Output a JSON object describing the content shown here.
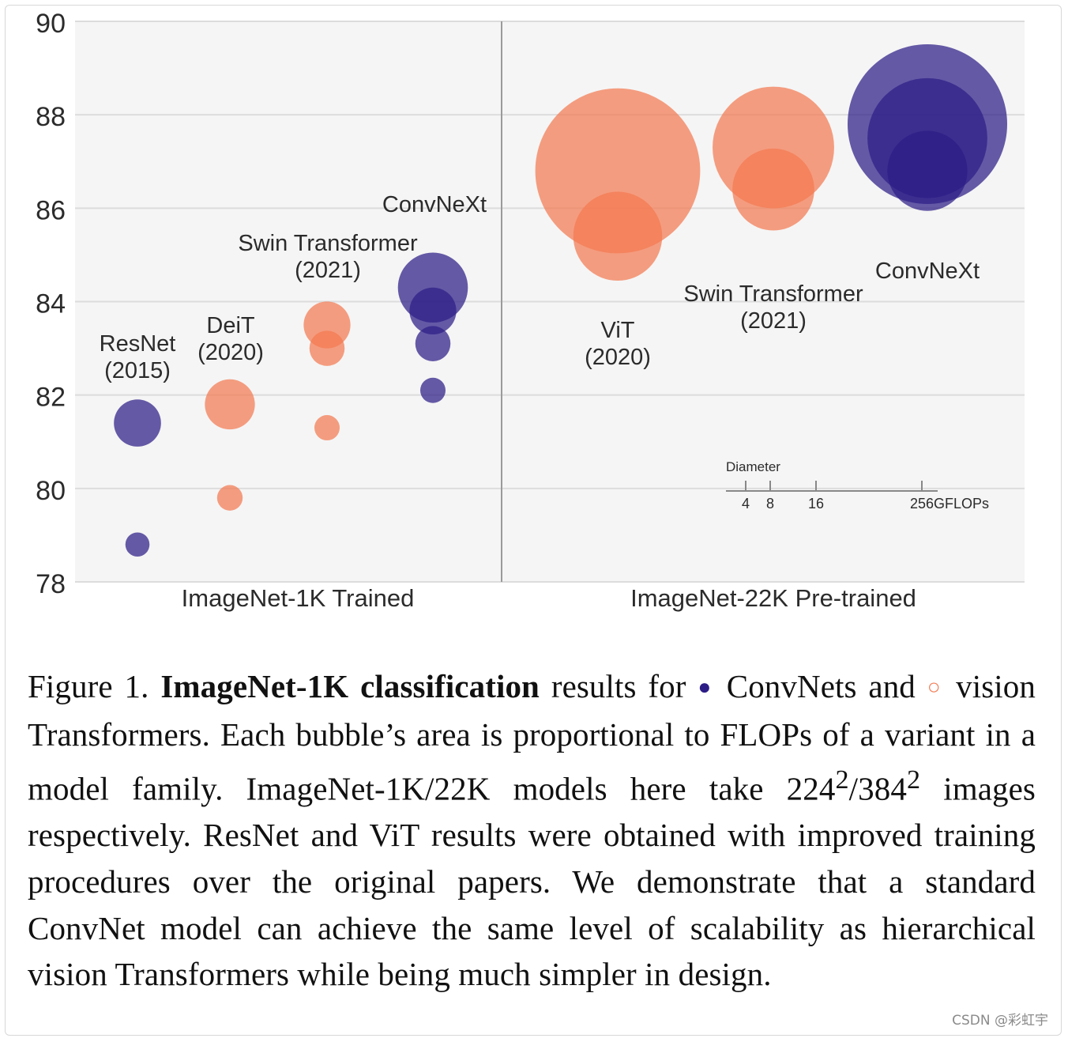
{
  "chart_data": {
    "type": "scatter",
    "subtype": "bubble",
    "ylim": [
      78,
      90
    ],
    "yticks": [
      78,
      80,
      82,
      84,
      86,
      88,
      90
    ],
    "grid": true,
    "panels": [
      {
        "name": "ImageNet-1K Trained"
      },
      {
        "name": "ImageNet-22K Pre-trained"
      }
    ],
    "colors": {
      "convnet": "#2c1d86",
      "transformer": "#f47a52",
      "axis": "#9a9a9a",
      "grid": "#dcdcdc",
      "bg": "#f5f5f5"
    },
    "series": [
      {
        "label": "ResNet",
        "year": "(2015)",
        "panel": 0,
        "slot": 0,
        "family": "convnet",
        "points": [
          {
            "acc": 78.8,
            "gflops": 4.1
          },
          {
            "acc": 81.4,
            "gflops": 15.6
          }
        ]
      },
      {
        "label": "DeiT",
        "year": "(2020)",
        "panel": 0,
        "slot": 1,
        "family": "transformer",
        "points": [
          {
            "acc": 79.8,
            "gflops": 4.6
          },
          {
            "acc": 81.8,
            "gflops": 17.6
          }
        ]
      },
      {
        "label": "Swin Transformer",
        "year": "(2021)",
        "panel": 0,
        "slot": 2,
        "family": "transformer",
        "points": [
          {
            "acc": 81.3,
            "gflops": 4.5
          },
          {
            "acc": 83.0,
            "gflops": 8.7
          },
          {
            "acc": 83.5,
            "gflops": 15.4
          }
        ]
      },
      {
        "label": "ConvNeXt",
        "year": "",
        "panel": 0,
        "slot": 3,
        "family": "convnet",
        "points": [
          {
            "acc": 82.1,
            "gflops": 4.5
          },
          {
            "acc": 83.1,
            "gflops": 8.7
          },
          {
            "acc": 83.8,
            "gflops": 15.4
          },
          {
            "acc": 84.3,
            "gflops": 34.4
          }
        ]
      },
      {
        "label": "ViT",
        "year": "(2020)",
        "panel": 1,
        "slot": 0,
        "family": "transformer",
        "points": [
          {
            "acc": 85.4,
            "gflops": 55.5
          },
          {
            "acc": 86.8,
            "gflops": 191.1
          }
        ]
      },
      {
        "label": "Swin Transformer",
        "year": "(2021)",
        "panel": 1,
        "slot": 1,
        "family": "transformer",
        "points": [
          {
            "acc": 86.4,
            "gflops": 47.1
          },
          {
            "acc": 87.3,
            "gflops": 103.9
          }
        ]
      },
      {
        "label": "ConvNeXt",
        "year": "",
        "panel": 1,
        "slot": 2,
        "family": "convnet",
        "points": [
          {
            "acc": 86.8,
            "gflops": 45.0
          },
          {
            "acc": 87.5,
            "gflops": 101.0
          },
          {
            "acc": 87.8,
            "gflops": 179.0
          }
        ]
      }
    ],
    "size_legend": {
      "title": "Diameter",
      "ticks": [
        "4",
        "8",
        "16",
        "256"
      ],
      "unit": "GFLOPs"
    }
  },
  "caption": {
    "figure_label": "Figure 1.",
    "bold_title": "ImageNet-1K classification",
    "text_1": " results for ",
    "convnet_marker": "●",
    "convnets": " ConvNets and ",
    "transformer_marker": "○",
    "text_2": " vision Transformers. Each bubble’s area is proportional to FLOPs of a variant in a model family.  ImageNet-1K/22K models here take 224",
    "sup_1": "2",
    "text_3": "/384",
    "sup_2": "2",
    "text_4": " images respectively. ResNet and ViT results were obtained with improved training procedures over the original papers. We demonstrate that a standard ConvNet model can achieve the same level of scalability as hierarchical vision Transformers while being much simpler in design."
  },
  "watermark": "CSDN @彩虹宇"
}
